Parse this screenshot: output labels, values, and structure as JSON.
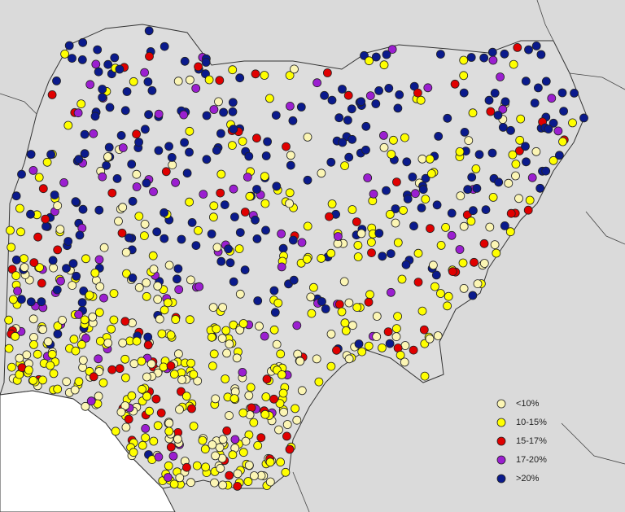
{
  "legend": {
    "items": [
      {
        "label": "<10%",
        "color": "#fbf5b4"
      },
      {
        "label": "10-15%",
        "color": "#ffff00"
      },
      {
        "label": "15-17%",
        "color": "#e00000"
      },
      {
        "label": "17-20%",
        "color": "#9b1fd0"
      },
      {
        "label": ">20%",
        "color": "#0a1a8c"
      }
    ]
  }
}
